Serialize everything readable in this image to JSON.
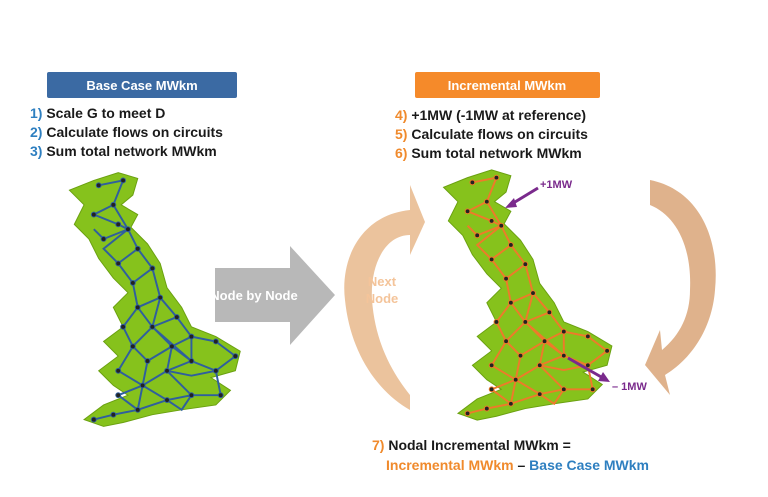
{
  "base_case": {
    "title": "Base Case MWkm",
    "steps": [
      {
        "number": "1)",
        "text": "Scale G to meet D"
      },
      {
        "number": "2)",
        "text": "Calculate flows on circuits"
      },
      {
        "number": "3)",
        "text": "Sum total network MWkm"
      }
    ]
  },
  "transition": {
    "label": "Node by Node"
  },
  "loop": {
    "lines": [
      "Next",
      "Node"
    ]
  },
  "incremental": {
    "title": "Incremental MWkm",
    "steps": [
      {
        "number": "4)",
        "text": "+1MW (-1MW at reference)"
      },
      {
        "number": "5)",
        "text": "Calculate flows on circuits"
      },
      {
        "number": "6)",
        "text": "Sum total network MWkm"
      }
    ],
    "annotations": {
      "injection": "+1MW",
      "reference": "– 1MW"
    }
  },
  "formula": {
    "number": "7)",
    "text": "Nodal Incremental MWkm =",
    "terms": [
      "Incremental MWkm",
      "–",
      "Base Case MWkm"
    ]
  }
}
